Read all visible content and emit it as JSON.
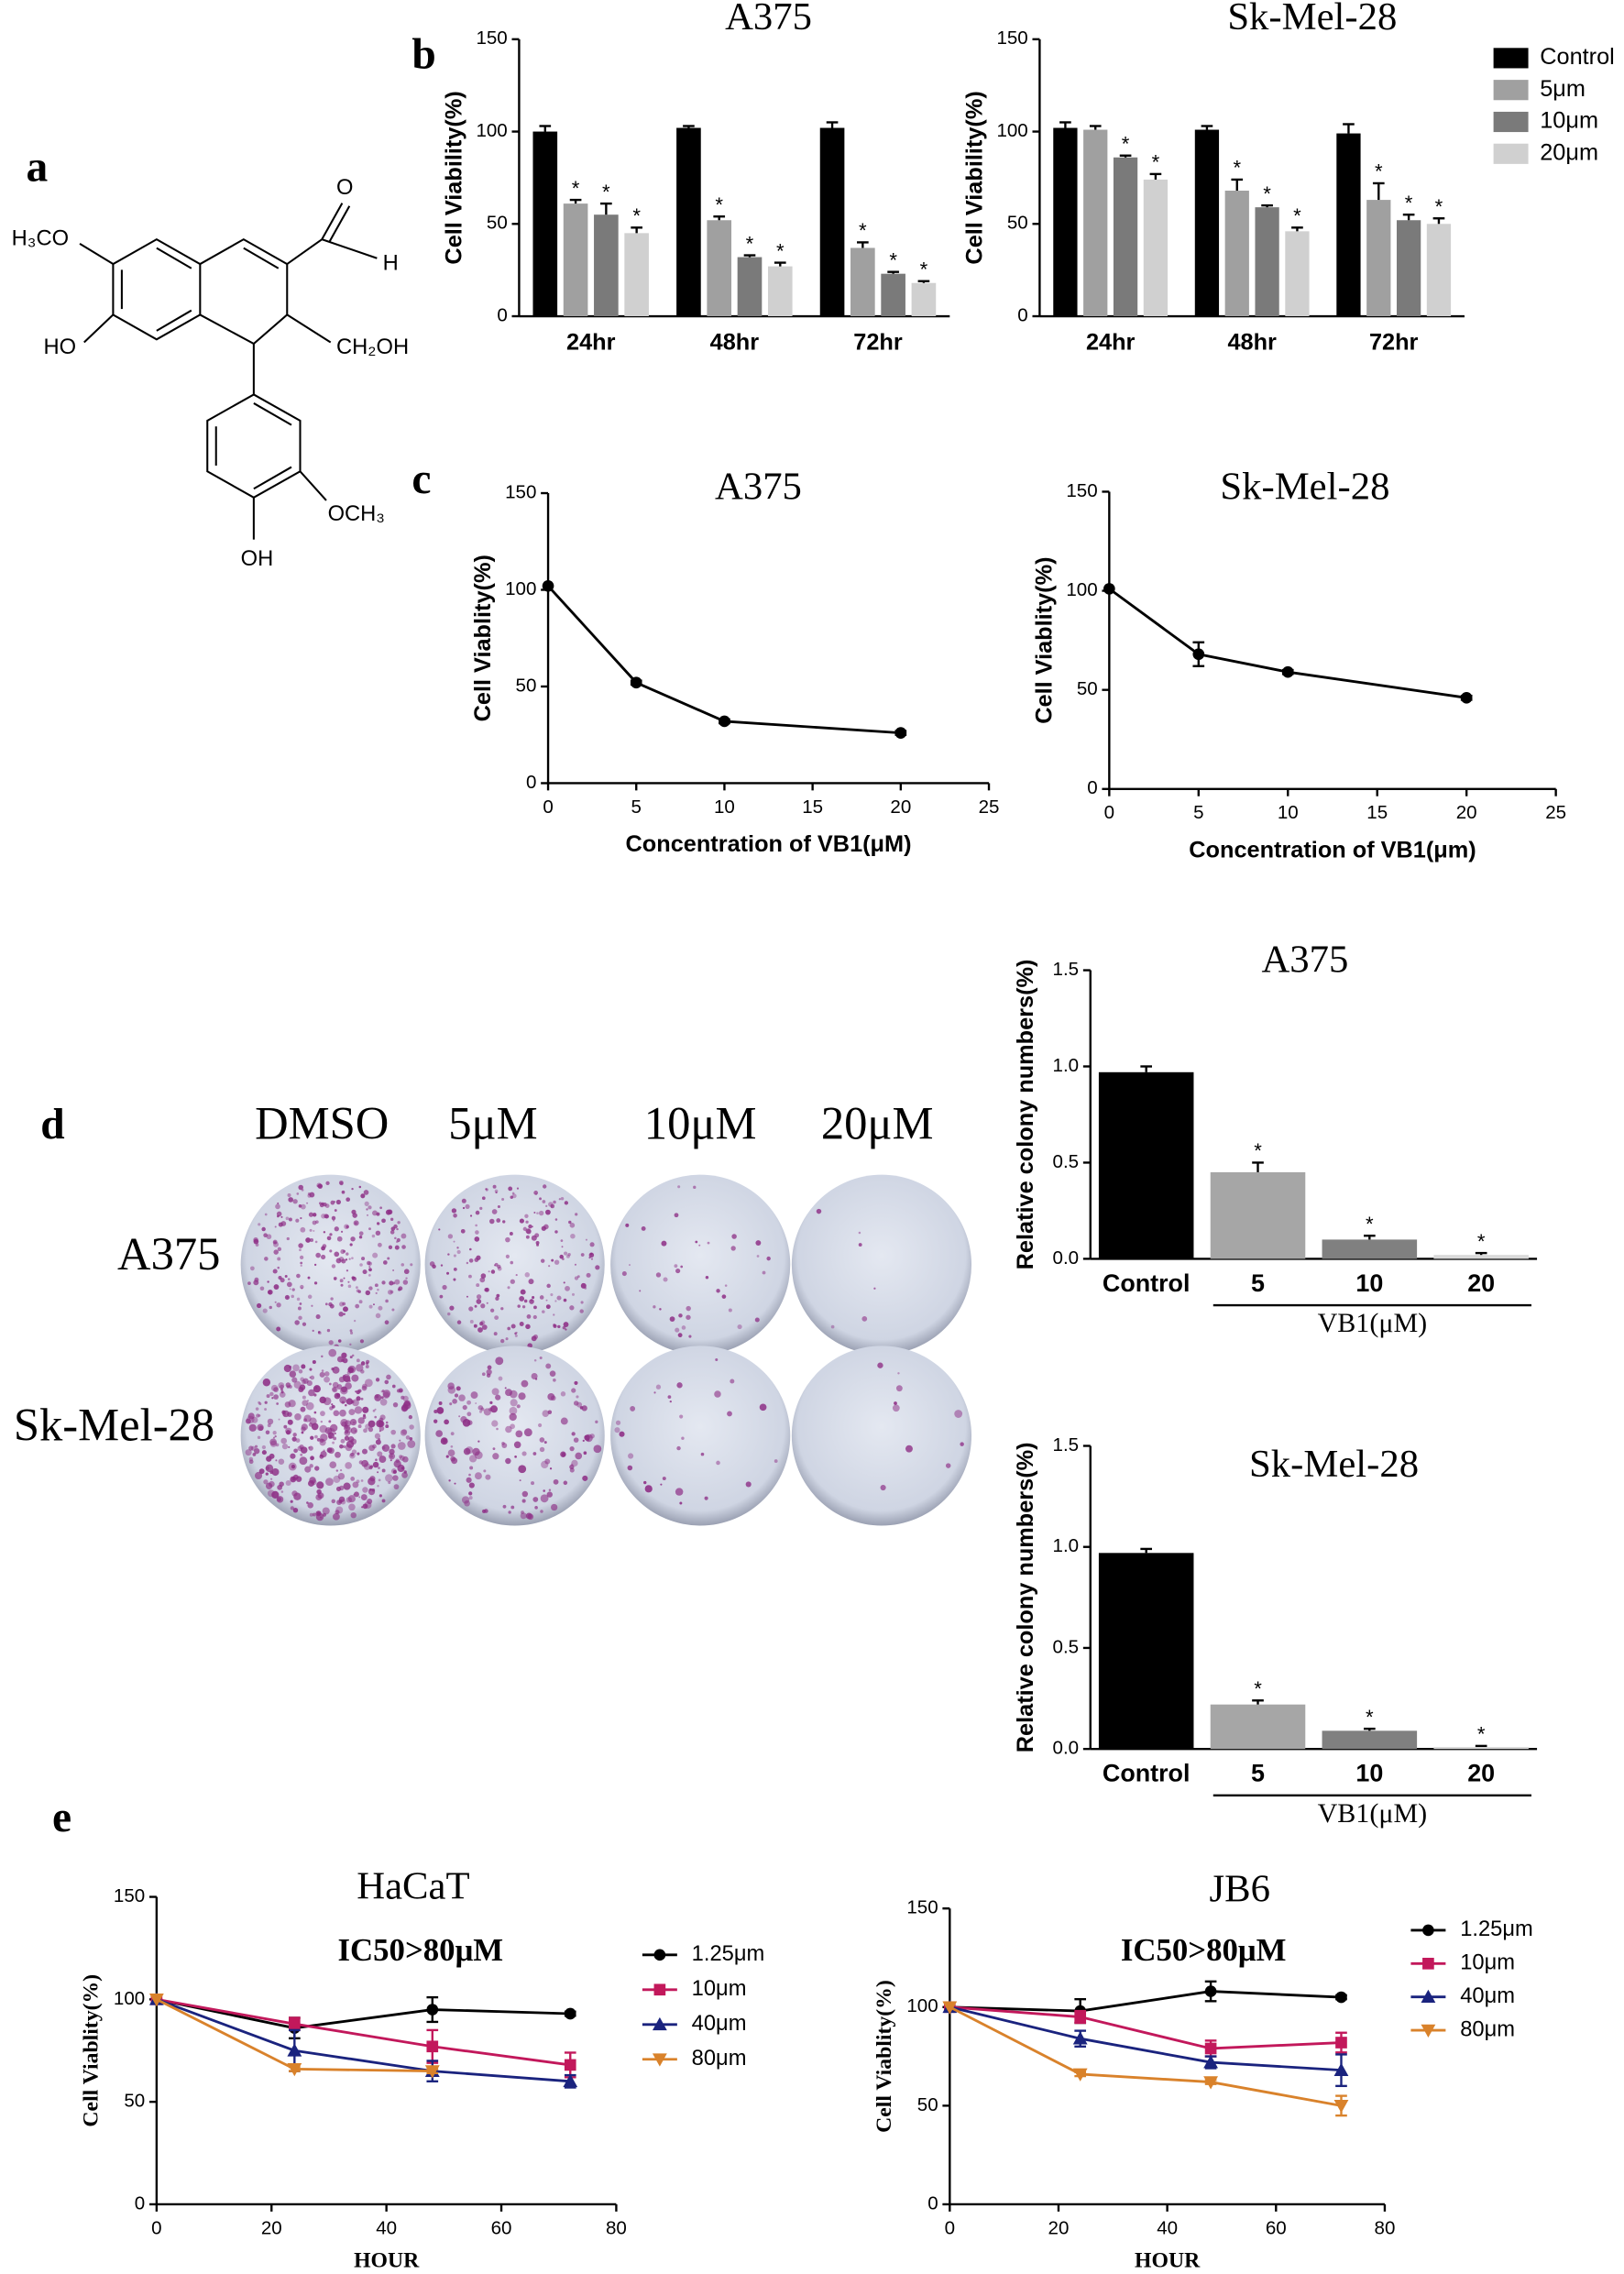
{
  "panel_labels": [
    "a",
    "b",
    "c",
    "d",
    "e"
  ],
  "structure": {
    "labels": [
      "H₃CO",
      "HO",
      "O",
      "H",
      "CH₂OH",
      "OCH₃",
      "OH"
    ]
  },
  "colony_assay": {
    "columns": [
      "DMSO",
      "5μM",
      "10μM",
      "20μM"
    ],
    "rows": [
      "A375",
      "Sk-Mel-28"
    ]
  },
  "chart_data": [
    {
      "type": "bar",
      "title": "A375",
      "y_label": "Cell Viability(%)",
      "categories": [
        "24hr",
        "48hr",
        "72hr"
      ],
      "ylim": [
        0,
        150
      ],
      "yticks": [
        0,
        50,
        100,
        150
      ],
      "series": [
        {
          "color": "#000000",
          "values": [
            100,
            102,
            102
          ],
          "errors": [
            3,
            1,
            3
          ],
          "significance": [
            null,
            null,
            null
          ]
        },
        {
          "color": "#a0a0a0",
          "values": [
            61,
            52,
            37
          ],
          "errors": [
            2,
            2,
            3
          ],
          "significance": [
            "*",
            "*",
            "*"
          ]
        },
        {
          "color": "#7a7a7a",
          "values": [
            55,
            32,
            23
          ],
          "errors": [
            6,
            1,
            1
          ],
          "significance": [
            "*",
            "*",
            "*"
          ]
        },
        {
          "color": "#d0d0d0",
          "values": [
            45,
            27,
            18
          ],
          "errors": [
            3,
            2,
            1
          ],
          "significance": [
            "*",
            "*",
            "*"
          ]
        }
      ]
    },
    {
      "type": "bar",
      "title": "Sk-Mel-28",
      "y_label": "Cell Viability(%)",
      "categories": [
        "24hr",
        "48hr",
        "72hr"
      ],
      "ylim": [
        0,
        150
      ],
      "yticks": [
        0,
        50,
        100,
        150
      ],
      "legend": "right",
      "series": [
        {
          "name": "Control",
          "color": "#000000",
          "values": [
            102,
            101,
            99
          ],
          "errors": [
            3,
            2,
            5
          ],
          "significance": [
            null,
            null,
            null
          ]
        },
        {
          "name": "5μm",
          "color": "#a0a0a0",
          "values": [
            101,
            68,
            63
          ],
          "errors": [
            2,
            6,
            9
          ],
          "significance": [
            null,
            "*",
            "*"
          ]
        },
        {
          "name": "10μm",
          "color": "#7a7a7a",
          "values": [
            86,
            59,
            52
          ],
          "errors": [
            1,
            1,
            3
          ],
          "significance": [
            "*",
            "*",
            "*"
          ]
        },
        {
          "name": "20μm",
          "color": "#d0d0d0",
          "values": [
            74,
            46,
            50
          ],
          "errors": [
            3,
            2,
            3
          ],
          "significance": [
            "*",
            "*",
            "*"
          ]
        }
      ]
    },
    {
      "type": "line",
      "title": "A375",
      "y_label": "Cell Viablity(%)",
      "x_label": "Concentration of VB1(μM)",
      "x": [
        0,
        5,
        10,
        20
      ],
      "xlim": [
        0,
        25
      ],
      "xticks": [
        0,
        5,
        10,
        15,
        20,
        25
      ],
      "ylim": [
        0,
        150
      ],
      "yticks": [
        0,
        50,
        100,
        150
      ],
      "series": [
        {
          "color": "#000000",
          "marker": "circle",
          "values": [
            102,
            52,
            32,
            26
          ],
          "errors": [
            0,
            1,
            1,
            1
          ]
        }
      ]
    },
    {
      "type": "line",
      "title": "Sk-Mel-28",
      "y_label": "Cell Viablity(%)",
      "x_label": "Concentration of VB1(μm)",
      "x": [
        0,
        5,
        10,
        20
      ],
      "xlim": [
        0,
        25
      ],
      "xticks": [
        0,
        5,
        10,
        15,
        20,
        25
      ],
      "ylim": [
        0,
        150
      ],
      "yticks": [
        0,
        50,
        100,
        150
      ],
      "series": [
        {
          "color": "#000000",
          "marker": "circle",
          "values": [
            101,
            68,
            59,
            46
          ],
          "errors": [
            0,
            6,
            1,
            1
          ]
        }
      ]
    },
    {
      "type": "colbar",
      "title": "A375",
      "y_label": "Relative colony numbers(%)",
      "group_label": "VB1(μM)",
      "categories": [
        "Control",
        "5",
        "10",
        "20"
      ],
      "values": [
        0.97,
        0.45,
        0.1,
        0.02
      ],
      "errors": [
        0.03,
        0.05,
        0.02,
        0.01
      ],
      "significance": [
        null,
        "*",
        "*",
        "*"
      ],
      "colors": [
        "#000000",
        "#a6a6a6",
        "#808080",
        "#d9d9d9"
      ],
      "ylim": [
        0,
        1.5
      ],
      "yticks": [
        {
          "value": 0,
          "label": "0.0"
        },
        {
          "value": 0.5,
          "label": "0.5"
        },
        {
          "value": 1,
          "label": "1.0"
        },
        {
          "value": 1.5,
          "label": "1.5"
        }
      ]
    },
    {
      "type": "colbar",
      "title": "Sk-Mel-28",
      "y_label": "Relative colony numbers(%)",
      "group_label": "VB1(μM)",
      "categories": [
        "Control",
        "5",
        "10",
        "20"
      ],
      "values": [
        0.97,
        0.22,
        0.09,
        0.01
      ],
      "errors": [
        0.02,
        0.02,
        0.01,
        0.005
      ],
      "significance": [
        null,
        "*",
        "*",
        "*"
      ],
      "colors": [
        "#000000",
        "#a6a6a6",
        "#808080",
        "#d9d9d9"
      ],
      "ylim": [
        0,
        1.5
      ],
      "yticks": [
        {
          "value": 0,
          "label": "0.0"
        },
        {
          "value": 0.5,
          "label": "0.5"
        },
        {
          "value": 1,
          "label": "1.0"
        },
        {
          "value": 1.5,
          "label": "1.5"
        }
      ]
    },
    {
      "type": "line",
      "title": "HaCaT",
      "annotation": "IC50>80μM",
      "y_label": "Cell Viablity(%)",
      "x_label": "HOUR",
      "legend": "right",
      "x": [
        0,
        24,
        48,
        72
      ],
      "xlim": [
        0,
        80
      ],
      "xticks": [
        0,
        20,
        40,
        60,
        80
      ],
      "ylim": [
        0,
        150
      ],
      "yticks": [
        0,
        50,
        100,
        150
      ],
      "series": [
        {
          "name": "1.25μm",
          "color": "#000000",
          "marker": "circle",
          "values": [
            100,
            86,
            95,
            93
          ],
          "errors": [
            0,
            5,
            6,
            1
          ]
        },
        {
          "name": "10μm",
          "color": "#c2185b",
          "marker": "square",
          "values": [
            100,
            88,
            77,
            68
          ],
          "errors": [
            0,
            3,
            8,
            6
          ]
        },
        {
          "name": "40μm",
          "color": "#1a237e",
          "marker": "triangle-up",
          "values": [
            100,
            75,
            65,
            60
          ],
          "errors": [
            0,
            10,
            5,
            3
          ]
        },
        {
          "name": "80μm",
          "color": "#d9822b",
          "marker": "triangle-down",
          "values": [
            100,
            66,
            65,
            null
          ],
          "errors": [
            0,
            1,
            1,
            null
          ]
        }
      ]
    },
    {
      "type": "line",
      "title": "JB6",
      "annotation": "IC50>80μM",
      "y_label": "Cell Viablity(%)",
      "x_label": "HOUR",
      "legend": "right",
      "x": [
        0,
        24,
        48,
        72
      ],
      "xlim": [
        0,
        80
      ],
      "xticks": [
        0,
        20,
        40,
        60,
        80
      ],
      "ylim": [
        0,
        150
      ],
      "yticks": [
        0,
        50,
        100,
        150
      ],
      "series": [
        {
          "name": "1.25μm",
          "color": "#000000",
          "marker": "circle",
          "values": [
            100,
            98,
            108,
            105
          ],
          "errors": [
            0,
            6,
            5,
            1
          ]
        },
        {
          "name": "10μm",
          "color": "#c2185b",
          "marker": "square",
          "values": [
            100,
            95,
            79,
            82
          ],
          "errors": [
            0,
            3,
            4,
            5
          ]
        },
        {
          "name": "40μm",
          "color": "#1a237e",
          "marker": "triangle-up",
          "values": [
            100,
            84,
            72,
            68
          ],
          "errors": [
            0,
            4,
            3,
            8
          ]
        },
        {
          "name": "80μm",
          "color": "#d9822b",
          "marker": "triangle-down",
          "values": [
            100,
            66,
            62,
            50
          ],
          "errors": [
            0,
            1,
            1,
            5
          ]
        }
      ]
    }
  ]
}
